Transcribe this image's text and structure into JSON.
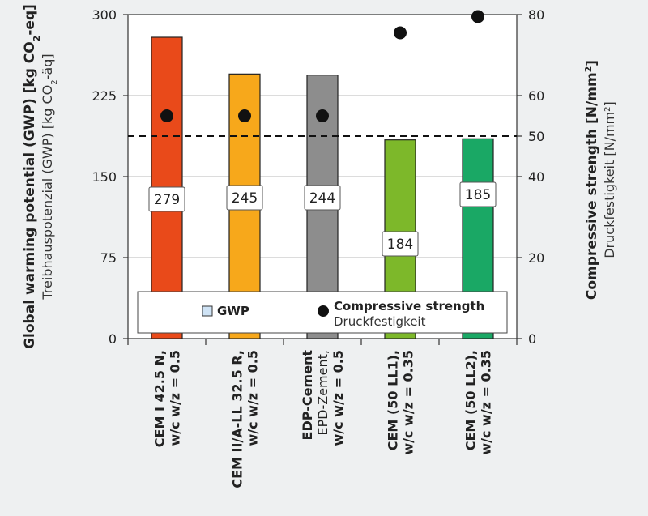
{
  "chart_data": {
    "type": "bar",
    "categories": [
      [
        "CEM I 42.5 N,",
        "w/c  w/z = 0.5"
      ],
      [
        "CEM II/A-LL 32.5 R,",
        "w/c  w/z = 0.5"
      ],
      [
        "EDP-Cement",
        "EPD-Zement,",
        "w/c  w/z = 0.5"
      ],
      [
        "CEM (50 LL1),",
        "w/c  w/z = 0.35"
      ],
      [
        "CEM (50 LL2),",
        "w/c  w/z = 0.35"
      ]
    ],
    "category_bold_lines": [
      [
        0,
        1
      ],
      [
        0,
        1
      ],
      [
        0,
        2
      ],
      [
        0,
        1
      ],
      [
        0,
        1
      ]
    ],
    "series": [
      {
        "name": "GWP",
        "values": [
          279,
          245,
          244,
          184,
          185
        ]
      },
      {
        "name": "Compressive strength",
        "axis": "right",
        "values": [
          55,
          55,
          55,
          75.5,
          79.5
        ]
      }
    ],
    "bar_colors": [
      "#e94a1a",
      "#f7a81b",
      "#8d8d8d",
      "#7db82a",
      "#1aa865"
    ],
    "y_left": {
      "label_line1": "Global warming potential (GWP) [kg CO",
      "label_sub1": "2",
      "label_end1": "-eq]",
      "label_line2": "Treibhauspotenzial (GWP) [kg CO",
      "label_sub2": "2",
      "label_end2": "-äq]",
      "ylim": [
        0,
        300
      ],
      "ticks": [
        0,
        75,
        150,
        225,
        300
      ]
    },
    "y_right": {
      "label_line1": "Compressive strength [N/mm",
      "label_sup1": "2",
      "label_end1": "]",
      "label_line2": "Druckfestigkeit [N/mm",
      "label_sup2": "2",
      "label_end2": "]",
      "ylim": [
        0,
        80
      ],
      "ticks": [
        0,
        20,
        40,
        50,
        60,
        80
      ]
    },
    "reference_line": {
      "axis": "right",
      "value": 50,
      "style": "dashed"
    },
    "grid": true,
    "legend": {
      "placement": "bottom",
      "items": [
        {
          "label": "GWP",
          "marker": "square",
          "color": "#cfe3f5"
        },
        {
          "label": "Compressive strength",
          "label2": "Druckfestigkeit",
          "marker": "circle",
          "color": "#111111"
        }
      ]
    }
  }
}
